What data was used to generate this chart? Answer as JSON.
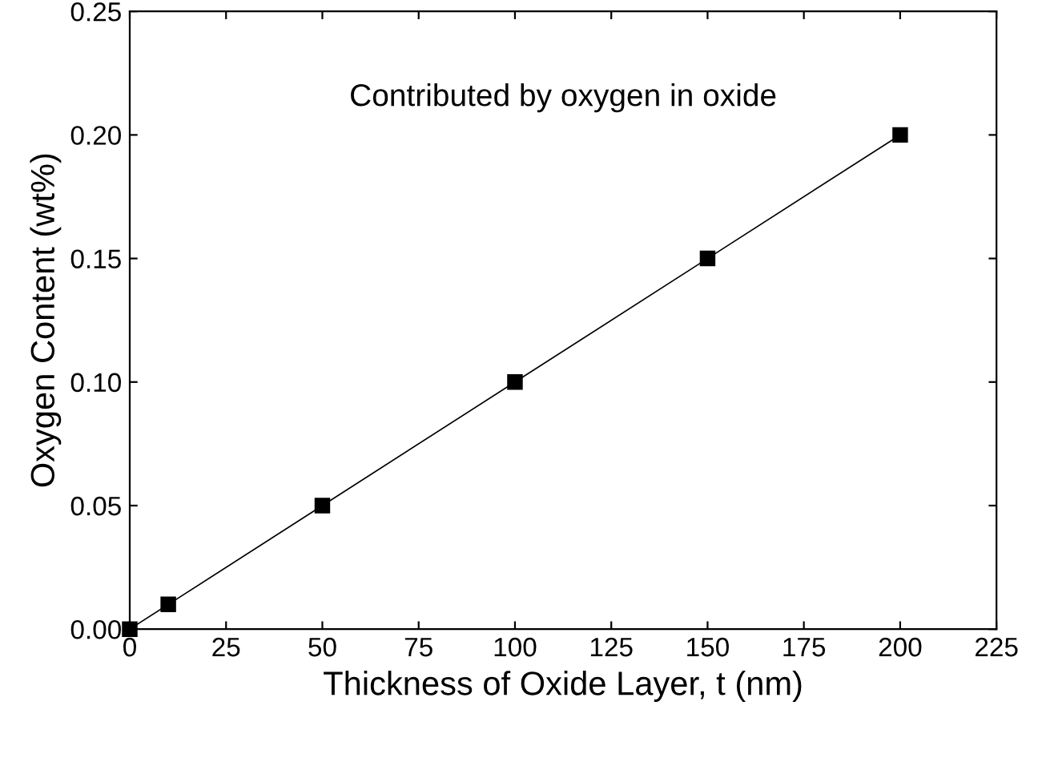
{
  "chart_data": {
    "type": "line",
    "xlabel": "Thickness of Oxide Layer, t (nm)",
    "ylabel": "Oxygen Content (wt%)",
    "annotations": [
      "Contributed by oxygen in oxide"
    ],
    "series": [
      {
        "color": "#000000",
        "x": [
          0,
          10,
          50,
          100,
          150,
          200
        ],
        "values": [
          0,
          0.01,
          0.05,
          0.1,
          0.15,
          0.2
        ]
      }
    ],
    "marker": "square",
    "line_style": "solid",
    "grid": false,
    "legend": false,
    "xlim": [
      0,
      225
    ],
    "xticks": [
      0,
      25,
      50,
      75,
      100,
      125,
      150,
      175,
      200,
      225
    ],
    "ylim": [
      0,
      0.25
    ],
    "yticks": [
      {
        "value": 0,
        "label": "0.00"
      },
      {
        "value": 0.05,
        "label": "0.05"
      },
      {
        "value": 0.1,
        "label": "0.10"
      },
      {
        "value": 0.15,
        "label": "0.15"
      },
      {
        "value": 0.2,
        "label": "0.20"
      },
      {
        "value": 0.25,
        "label": "0.25"
      }
    ]
  }
}
